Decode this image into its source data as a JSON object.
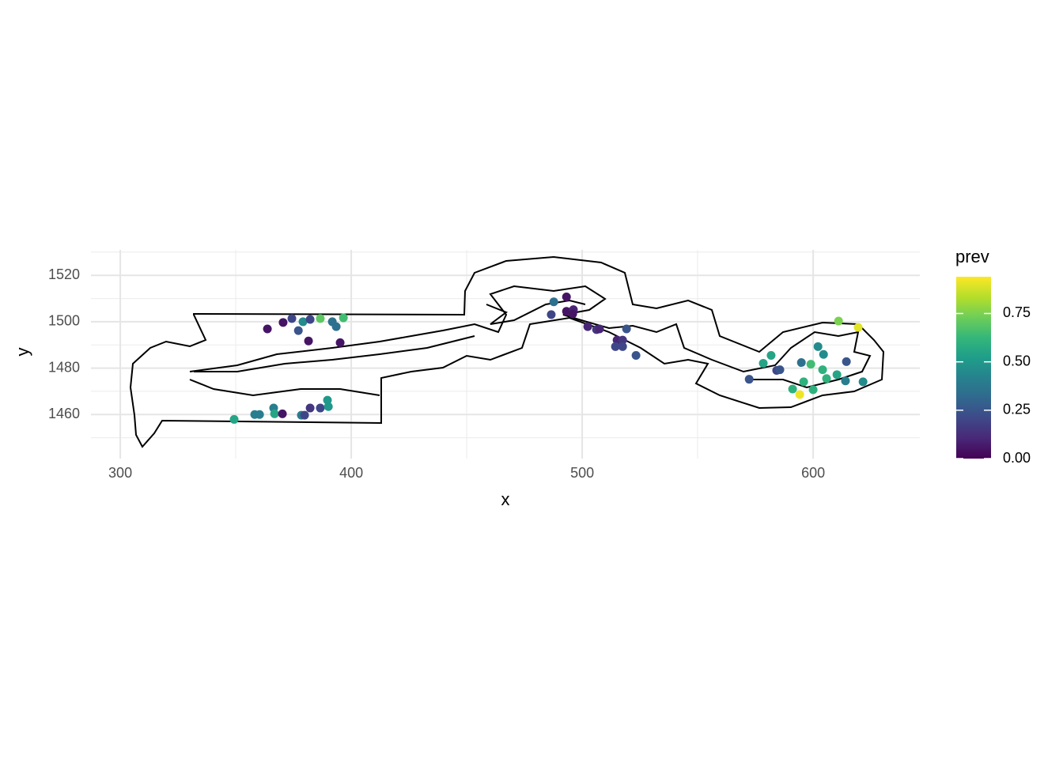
{
  "chart_data": {
    "type": "scatter",
    "x_label": "x",
    "y_label": "y",
    "color_label": "prev",
    "x": [
      363.7,
      370.5,
      374.3,
      377.1,
      379.1,
      382.2,
      386.6,
      391.8,
      393.5,
      396.6,
      381.5,
      395.2,
      349.3,
      358.2,
      360.3,
      366.4,
      366.8,
      370.2,
      378.4,
      379.8,
      382.2,
      386.6,
      389.7,
      390.1,
      487.7,
      493.2,
      486.6,
      493.2,
      496.2,
      495.9,
      502.4,
      506.2,
      507.5,
      519.2,
      515.1,
      517.5,
      514.4,
      517.5,
      523.3,
      572.3,
      578.4,
      581.8,
      584.2,
      585.6,
      591.1,
      594.2,
      595.9,
      594.9,
      599.0,
      600.0,
      602.1,
      604.5,
      604.1,
      605.8,
      610.3,
      611.0,
      619.5,
      614.4,
      614.0,
      621.6
    ],
    "y": [
      1496.9,
      1499.7,
      1501.4,
      1496.2,
      1500.0,
      1501.0,
      1501.4,
      1500.0,
      1497.9,
      1501.7,
      1491.7,
      1491.0,
      1457.9,
      1460.0,
      1460.0,
      1462.8,
      1460.3,
      1460.3,
      1459.7,
      1459.7,
      1462.8,
      1462.8,
      1466.2,
      1463.4,
      1508.6,
      1510.7,
      1503.1,
      1504.5,
      1505.2,
      1503.4,
      1497.9,
      1496.6,
      1496.9,
      1496.9,
      1492.1,
      1492.1,
      1489.3,
      1489.3,
      1485.5,
      1475.2,
      1482.1,
      1485.5,
      1479.0,
      1479.3,
      1471.0,
      1468.6,
      1474.1,
      1482.4,
      1481.7,
      1470.7,
      1489.3,
      1485.9,
      1479.3,
      1475.5,
      1477.2,
      1500.3,
      1497.6,
      1482.8,
      1474.5,
      1474.1
    ],
    "values": [
      0.05,
      0.05,
      0.2,
      0.25,
      0.45,
      0.2,
      0.7,
      0.35,
      0.35,
      0.65,
      0.05,
      0.05,
      0.55,
      0.4,
      0.4,
      0.4,
      0.55,
      0.05,
      0.4,
      0.2,
      0.15,
      0.2,
      0.5,
      0.5,
      0.35,
      0.05,
      0.2,
      0.05,
      0.1,
      0.05,
      0.1,
      0.15,
      0.1,
      0.25,
      0.1,
      0.15,
      0.2,
      0.2,
      0.25,
      0.25,
      0.55,
      0.55,
      0.2,
      0.25,
      0.6,
      0.92,
      0.6,
      0.35,
      0.65,
      0.6,
      0.45,
      0.45,
      0.6,
      0.6,
      0.55,
      0.75,
      0.9,
      0.25,
      0.4,
      0.45
    ],
    "xlim": [
      287.3,
      646.2
    ],
    "ylim": [
      1441,
      1531
    ],
    "xticks": [
      300,
      400,
      500,
      600
    ],
    "yticks": [
      1460,
      1480,
      1500,
      1520
    ],
    "clim": [
      0,
      0.94
    ],
    "cticks": [
      {
        "value": 0,
        "label": "0.00"
      },
      {
        "value": 0.25,
        "label": "0.25"
      },
      {
        "value": 0.5,
        "label": "0.50"
      },
      {
        "value": 0.75,
        "label": "0.75"
      }
    ],
    "colorscale": [
      "#440154",
      "#482878",
      "#3e4989",
      "#31688e",
      "#26828e",
      "#1f9e89",
      "#35b779",
      "#6ece58",
      "#b5de2b",
      "#fde725"
    ],
    "grid": true
  }
}
